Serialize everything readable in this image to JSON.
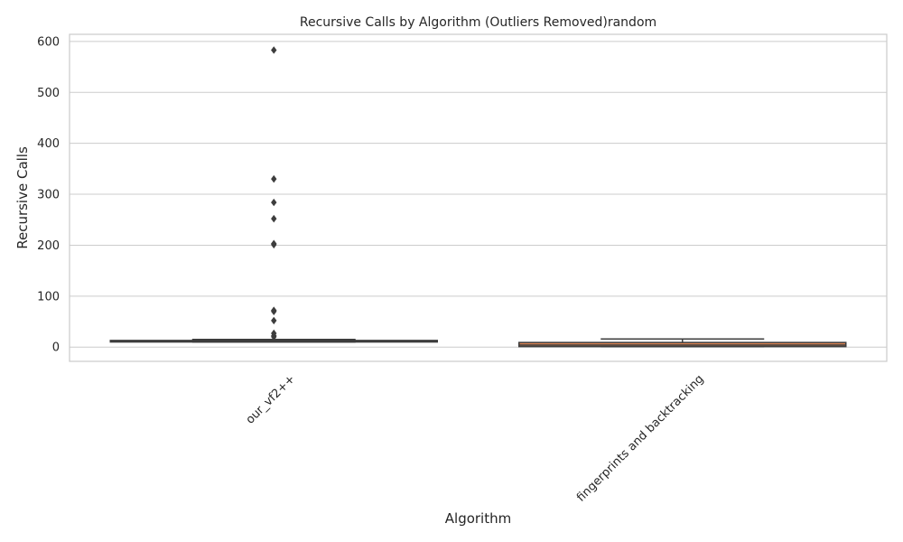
{
  "chart_data": {
    "type": "box",
    "title": "Recursive Calls by Algorithm (Outliers Removed)random",
    "xlabel": "Algorithm",
    "ylabel": "Recursive Calls",
    "ylim": [
      -28,
      614
    ],
    "yticks": [
      0,
      100,
      200,
      300,
      400,
      500,
      600
    ],
    "grid": true,
    "categories": [
      "our_vf2++",
      "fingerprints and backtracking"
    ],
    "boxes": [
      {
        "category": "our_vf2++",
        "q1": 10,
        "median": 11,
        "q3": 13,
        "whisker_low": 10,
        "whisker_high": 15,
        "outliers": [
          583,
          330,
          284,
          252,
          203,
          201,
          72,
          70,
          52,
          27,
          22,
          20
        ]
      },
      {
        "category": "fingerprints and backtracking",
        "q1": 1,
        "median": 4,
        "q3": 9,
        "whisker_low": 1,
        "whisker_high": 16,
        "outliers": []
      }
    ],
    "colors": {
      "our_vf2++": "#4c72b0",
      "fingerprints and backtracking": "#dd8452",
      "box_edge": "#3d3d3d",
      "grid": "#cccccc",
      "spine": "#cccccc"
    }
  }
}
